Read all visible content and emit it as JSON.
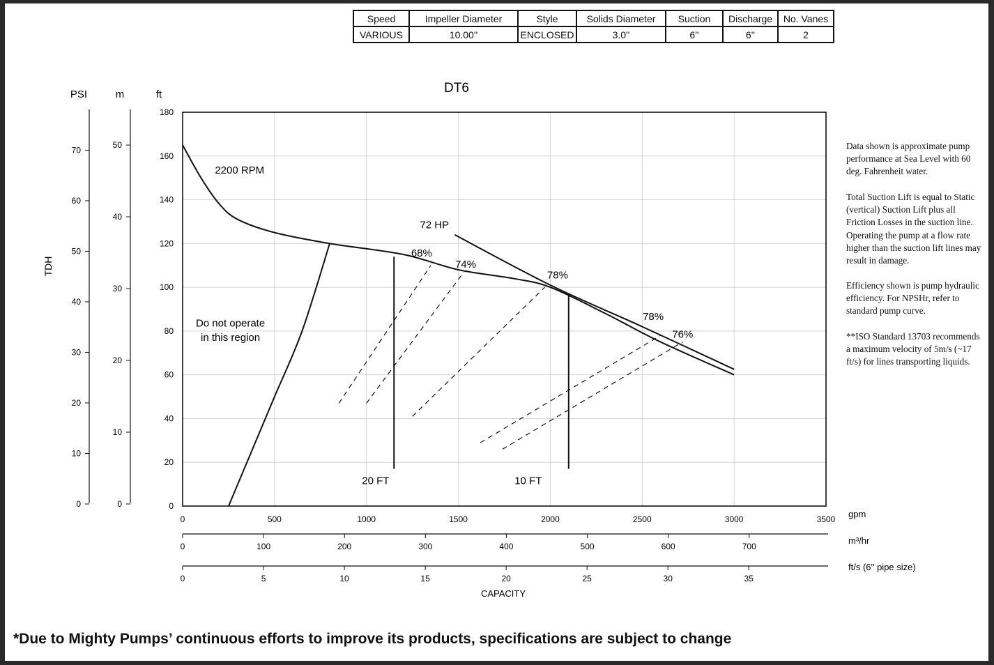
{
  "spec_table": {
    "headers": [
      "Speed",
      "Impeller Diameter",
      "Style",
      "Solids Diameter",
      "Suction",
      "Discharge",
      "No. Vanes"
    ],
    "values": [
      "VARIOUS",
      "10.00''",
      "ENCLOSED",
      "3.0''",
      "6''",
      "6''",
      "2"
    ]
  },
  "notes": [
    "Data shown is approximate pump performance at Sea Level with 60 deg. Fahrenheit water.",
    "Total Suction Lift is equal to Static (vertical) Suction Lift plus all Friction Losses in the suction line. Operating the pump at a flow rate higher than the suction lift lines may result in damage.",
    "Efficiency shown is pump hydraulic efficiency. For NPSHr, refer to standard pump curve.",
    "**ISO Standard 13703 recommends a maximum velocity of 5m/s (~17 ft/s) for lines transporting liquids."
  ],
  "footer": "*Due to Mighty Pumps’ continuous efforts to improve its products, specifications are subject to change",
  "chart_data": {
    "type": "line",
    "title": "DT6",
    "ylabel": "TDH",
    "xlabel": "CAPACITY",
    "grid": true,
    "x_axis": {
      "unit": "gpm",
      "range": [
        0,
        3500
      ],
      "ticks": [
        0,
        500,
        1000,
        1500,
        2000,
        2500,
        3000,
        3500
      ]
    },
    "y_axis": {
      "unit": "ft",
      "range": [
        0,
        180
      ],
      "ticks": [
        0,
        20,
        40,
        60,
        80,
        100,
        120,
        140,
        160,
        180
      ]
    },
    "secondary_x_axes": [
      {
        "unit": "m³/hr",
        "gpm_per_unit": 4.4029,
        "ticks": [
          0,
          100,
          200,
          300,
          400,
          500,
          600,
          700
        ]
      },
      {
        "unit": "ft/s (6'' pipe size)",
        "gpm_per_unit": 88.0,
        "ticks": [
          0,
          5,
          10,
          15,
          20,
          25,
          30,
          35
        ]
      }
    ],
    "secondary_y_axes": [
      {
        "unit": "PSI",
        "ft_per_unit": 2.31,
        "ticks": [
          0,
          10,
          20,
          30,
          40,
          50,
          60,
          70
        ]
      },
      {
        "unit": "m",
        "ft_per_unit": 3.281,
        "ticks": [
          0,
          10,
          20,
          30,
          40,
          50
        ]
      }
    ],
    "series": [
      {
        "name": "2200 RPM",
        "style": "solid",
        "points": [
          [
            0,
            165
          ],
          [
            100,
            150
          ],
          [
            200,
            138
          ],
          [
            300,
            131
          ],
          [
            500,
            125
          ],
          [
            800,
            120
          ],
          [
            1200,
            115
          ],
          [
            1500,
            108
          ],
          [
            1800,
            104
          ],
          [
            2000,
            100
          ],
          [
            2300,
            88
          ],
          [
            2600,
            75
          ],
          [
            3000,
            60
          ]
        ]
      },
      {
        "name": "72 HP",
        "style": "solid",
        "points": [
          [
            1480,
            124
          ],
          [
            2000,
            101
          ],
          [
            2500,
            82
          ],
          [
            3000,
            62.5
          ]
        ]
      },
      {
        "name": "Do not operate boundary",
        "style": "solid",
        "points": [
          [
            250,
            0
          ],
          [
            400,
            30
          ],
          [
            500,
            50
          ],
          [
            650,
            80
          ],
          [
            800,
            120
          ]
        ]
      },
      {
        "name": "20 FT",
        "style": "solid",
        "points": [
          [
            1150,
            114
          ],
          [
            1150,
            17
          ]
        ]
      },
      {
        "name": "10 FT",
        "style": "solid",
        "points": [
          [
            2100,
            97
          ],
          [
            2100,
            17
          ]
        ]
      },
      {
        "name": "68%",
        "style": "dashed",
        "points": [
          [
            850,
            47
          ],
          [
            1350,
            110
          ]
        ]
      },
      {
        "name": "74%",
        "style": "dashed",
        "points": [
          [
            1000,
            47
          ],
          [
            1530,
            107
          ]
        ]
      },
      {
        "name": "78%",
        "style": "dashed",
        "points": [
          [
            1250,
            41
          ],
          [
            1970,
            100
          ]
        ]
      },
      {
        "name": "78%",
        "style": "dashed",
        "points": [
          [
            1620,
            29
          ],
          [
            2600,
            78
          ]
        ]
      },
      {
        "name": "76%",
        "style": "dashed",
        "points": [
          [
            1740,
            26
          ],
          [
            2720,
            75
          ]
        ]
      }
    ],
    "annotations": [
      {
        "text": "2200 RPM",
        "at": [
          310,
          152
        ]
      },
      {
        "text": "72 HP",
        "at": [
          1370,
          127
        ]
      },
      {
        "text": "68%",
        "at": [
          1300,
          114
        ]
      },
      {
        "text": "74%",
        "at": [
          1540,
          109
        ]
      },
      {
        "text": "78%",
        "at": [
          2040,
          104
        ]
      },
      {
        "text": "78%",
        "at": [
          2560,
          85
        ]
      },
      {
        "text": "76%",
        "at": [
          2720,
          77
        ]
      },
      {
        "text": "20 FT",
        "at": [
          1050,
          10
        ]
      },
      {
        "text": "10 FT",
        "at": [
          1880,
          10
        ]
      },
      {
        "text": "Do not operate",
        "at": [
          260,
          82
        ]
      },
      {
        "text": "in this region",
        "at": [
          260,
          75.5
        ]
      }
    ]
  }
}
